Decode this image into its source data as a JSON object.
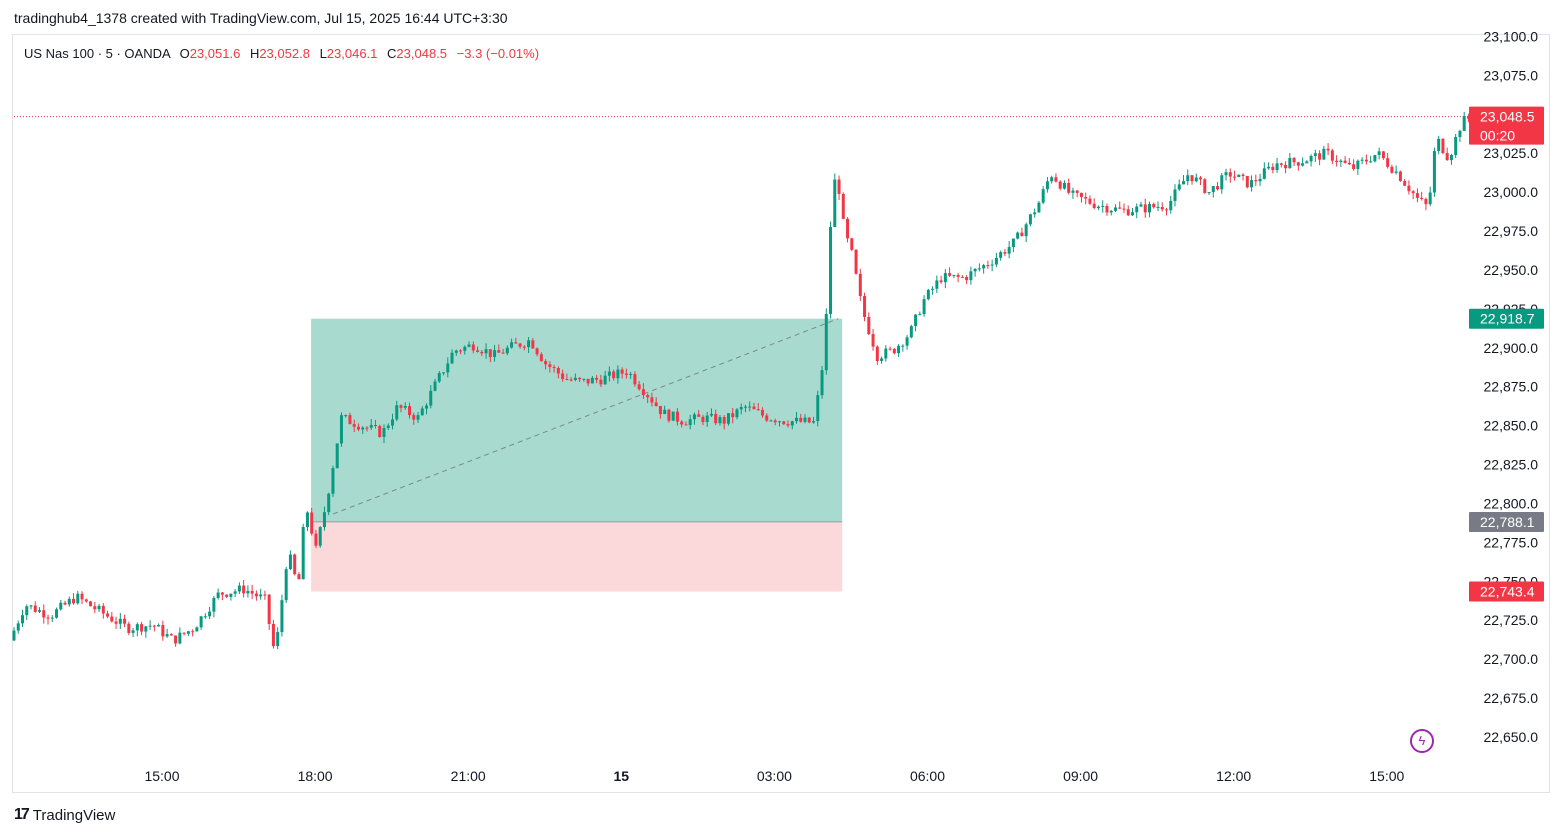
{
  "header": {
    "caption": "tradinghub4_1378 created with TradingView.com, Jul 15, 2025 16:44 UTC+3:30"
  },
  "legend": {
    "symbol": "US Nas 100 · 5 · OANDA",
    "o_label": "O",
    "o_value": "23,051.6",
    "h_label": "H",
    "h_value": "23,052.8",
    "l_label": "L",
    "l_value": "23,046.1",
    "c_label": "C",
    "c_value": "23,048.5",
    "change": "−3.3 (−0.01%)"
  },
  "footer": {
    "brand": "TradingView",
    "brand_icon": "tradingview-logo-icon"
  },
  "colors": {
    "up": "#089981",
    "down": "#f23645",
    "target_zone": "#a8dacf",
    "stop_zone": "#fbd9da",
    "current_price_line": "#f23645"
  },
  "chart_data": {
    "type": "candlestick",
    "title": "US Nas 100 · 5 · OANDA",
    "ylim": [
      22640,
      23100
    ],
    "y_ticks": [
      "23,100.0",
      "23,075.0",
      "23,050.0",
      "23,025.0",
      "23,000.0",
      "22,975.0",
      "22,950.0",
      "22,925.0",
      "22,900.0",
      "22,875.0",
      "22,850.0",
      "22,825.0",
      "22,800.0",
      "22,775.0",
      "22,750.0",
      "22,725.0",
      "22,700.0",
      "22,675.0",
      "22,650.0"
    ],
    "y_tick_values": [
      23100,
      23075,
      23050,
      23025,
      23000,
      22975,
      22950,
      22925,
      22900,
      22875,
      22850,
      22825,
      22800,
      22775,
      22750,
      22725,
      22700,
      22675,
      22650
    ],
    "x_ticks": [
      {
        "label": "15:00",
        "hour": 15
      },
      {
        "label": "18:00",
        "hour": 18
      },
      {
        "label": "21:00",
        "hour": 21
      },
      {
        "label": "15",
        "hour": 24
      },
      {
        "label": "03:00",
        "hour": 27
      },
      {
        "label": "06:00",
        "hour": 30
      },
      {
        "label": "09:00",
        "hour": 33
      },
      {
        "label": "12:00",
        "hour": 36
      },
      {
        "label": "15:00",
        "hour": 39
      }
    ],
    "x_range_hours": [
      12.1,
      42.1
    ],
    "price_tags": [
      {
        "value": 23048.5,
        "text": "23,048.5",
        "subtext": "00:20",
        "color": "#f23645"
      },
      {
        "value": 22918.7,
        "text": "22,918.7",
        "color": "#089981"
      },
      {
        "value": 22788.1,
        "text": "22,788.1",
        "color": "#787b86"
      },
      {
        "value": 22743.4,
        "text": "22,743.4",
        "color": "#f23645"
      }
    ],
    "position": {
      "type": "long",
      "entry": 22788.1,
      "target": 22918.7,
      "stop": 22743.4,
      "start_hour": 18.0,
      "end_hour": 28.25
    },
    "current_price": 23048.5,
    "anchors": [
      [
        12.1,
        22712
      ],
      [
        12.4,
        22735
      ],
      [
        12.9,
        22728
      ],
      [
        13.4,
        22740
      ],
      [
        13.9,
        22730
      ],
      [
        14.4,
        22720
      ],
      [
        14.9,
        22722
      ],
      [
        15.3,
        22712
      ],
      [
        15.7,
        22720
      ],
      [
        16.2,
        22742
      ],
      [
        16.7,
        22745
      ],
      [
        17.1,
        22738
      ],
      [
        17.3,
        22702
      ],
      [
        17.55,
        22770
      ],
      [
        17.75,
        22745
      ],
      [
        17.9,
        22800
      ],
      [
        18.1,
        22770
      ],
      [
        18.3,
        22800
      ],
      [
        18.6,
        22855
      ],
      [
        19.0,
        22850
      ],
      [
        19.4,
        22845
      ],
      [
        19.7,
        22862
      ],
      [
        20.1,
        22855
      ],
      [
        20.5,
        22880
      ],
      [
        20.8,
        22898
      ],
      [
        21.2,
        22902
      ],
      [
        21.6,
        22895
      ],
      [
        21.9,
        22900
      ],
      [
        22.3,
        22905
      ],
      [
        22.6,
        22890
      ],
      [
        23.0,
        22880
      ],
      [
        23.3,
        22878
      ],
      [
        23.7,
        22880
      ],
      [
        24.2,
        22885
      ],
      [
        24.6,
        22870
      ],
      [
        24.9,
        22858
      ],
      [
        25.3,
        22853
      ],
      [
        25.7,
        22855
      ],
      [
        26.1,
        22853
      ],
      [
        26.5,
        22862
      ],
      [
        26.9,
        22856
      ],
      [
        27.3,
        22853
      ],
      [
        27.85,
        22852
      ],
      [
        28.0,
        22880
      ],
      [
        28.1,
        22920
      ],
      [
        28.2,
        22990
      ],
      [
        28.3,
        23015
      ],
      [
        28.45,
        22975
      ],
      [
        28.6,
        22960
      ],
      [
        28.8,
        22925
      ],
      [
        29.1,
        22895
      ],
      [
        29.4,
        22898
      ],
      [
        29.75,
        22910
      ],
      [
        30.0,
        22930
      ],
      [
        30.35,
        22945
      ],
      [
        30.8,
        22945
      ],
      [
        31.3,
        22955
      ],
      [
        31.8,
        22968
      ],
      [
        32.25,
        22992
      ],
      [
        32.5,
        23012
      ],
      [
        32.9,
        22998
      ],
      [
        33.4,
        22992
      ],
      [
        33.9,
        22988
      ],
      [
        34.4,
        22990
      ],
      [
        34.8,
        22992
      ],
      [
        35.2,
        23012
      ],
      [
        35.6,
        23000
      ],
      [
        36.0,
        23012
      ],
      [
        36.4,
        23005
      ],
      [
        36.9,
        23018
      ],
      [
        37.4,
        23020
      ],
      [
        37.9,
        23025
      ],
      [
        38.4,
        23015
      ],
      [
        38.9,
        23025
      ],
      [
        39.3,
        23012
      ],
      [
        39.7,
        22995
      ],
      [
        39.9,
        22990
      ],
      [
        40.05,
        23035
      ],
      [
        40.3,
        23022
      ],
      [
        40.55,
        23045
      ],
      [
        40.75,
        23048.5
      ]
    ]
  }
}
